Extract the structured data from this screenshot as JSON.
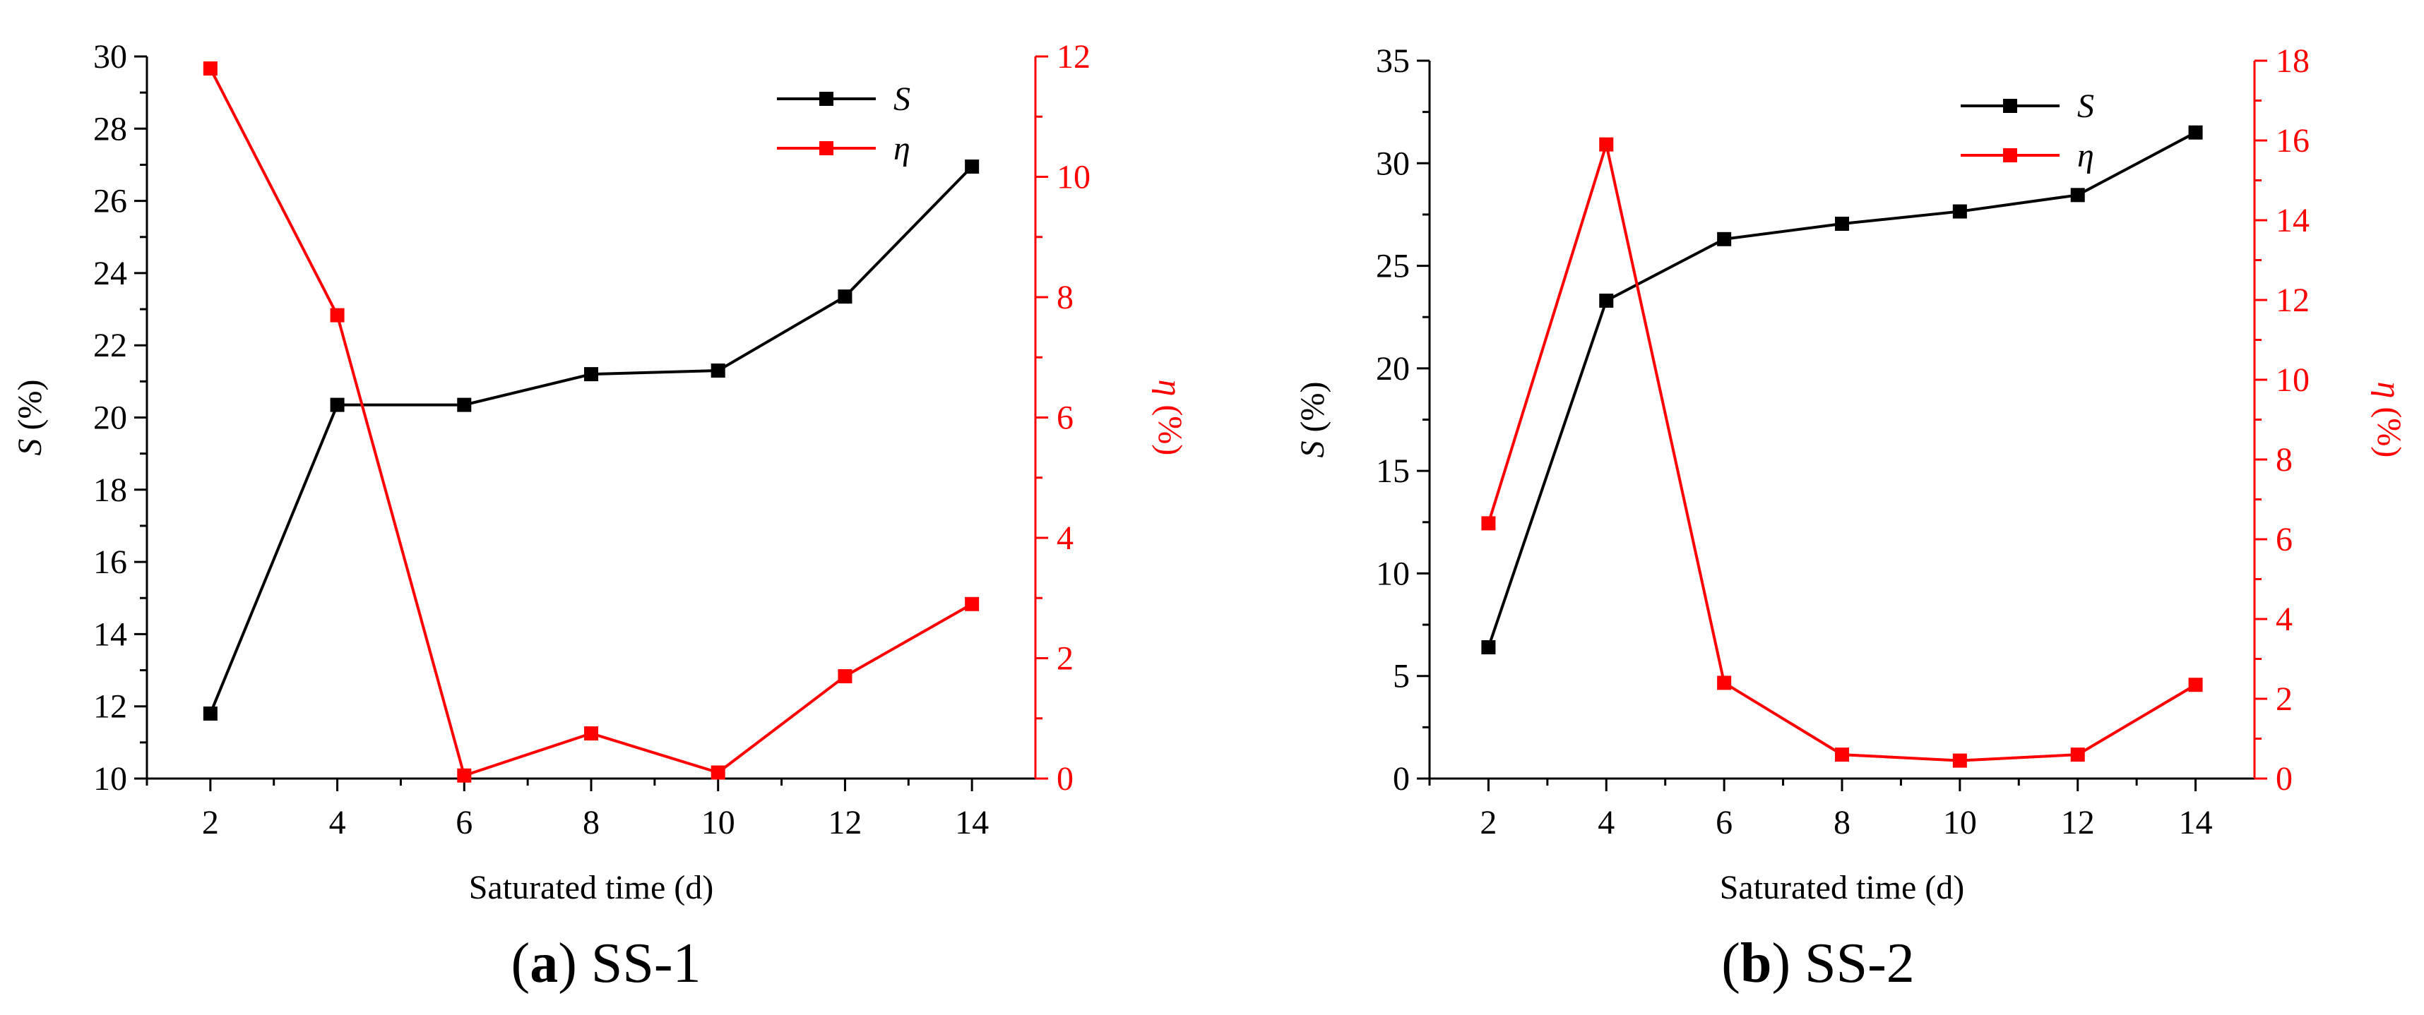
{
  "chart_data": [
    {
      "type": "line",
      "panel": "a",
      "caption_letter": "a",
      "caption_text": "SS-1",
      "xlabel": "Saturated time (d)",
      "ylabel_left_symbol": "S",
      "ylabel_left_unit": " (%)",
      "ylabel_right_symbol": "η",
      "ylabel_right_unit": " (%)",
      "x": [
        2,
        4,
        6,
        8,
        10,
        12,
        14
      ],
      "xlim": [
        1,
        15
      ],
      "xticks": [
        2,
        4,
        6,
        8,
        10,
        12,
        14
      ],
      "ylim_left": [
        10,
        30
      ],
      "yticks_left": [
        10,
        12,
        14,
        16,
        18,
        20,
        22,
        24,
        26,
        28,
        30
      ],
      "ylim_right": [
        0,
        12
      ],
      "yticks_right": [
        0,
        2,
        4,
        6,
        8,
        10,
        12
      ],
      "legend_position": "top-right",
      "series": [
        {
          "name": "S",
          "axis": "left",
          "color": "#000000",
          "values": [
            11.8,
            20.35,
            20.35,
            21.2,
            21.3,
            23.35,
            26.95
          ]
        },
        {
          "name": "η",
          "axis": "right",
          "color": "#ff0000",
          "values": [
            11.8,
            7.7,
            0.05,
            0.75,
            0.1,
            1.7,
            2.9
          ]
        }
      ]
    },
    {
      "type": "line",
      "panel": "b",
      "caption_letter": "b",
      "caption_text": "SS-2",
      "xlabel": "Saturated time (d)",
      "ylabel_left_symbol": "S",
      "ylabel_left_unit": " (%)",
      "ylabel_right_symbol": "η",
      "ylabel_right_unit": " (%)",
      "x": [
        2,
        4,
        6,
        8,
        10,
        12,
        14
      ],
      "xlim": [
        1,
        15
      ],
      "xticks": [
        2,
        4,
        6,
        8,
        10,
        12,
        14
      ],
      "ylim_left": [
        0,
        35
      ],
      "yticks_left": [
        0,
        5,
        10,
        15,
        20,
        25,
        30,
        35
      ],
      "ylim_right": [
        0,
        18
      ],
      "yticks_right": [
        0,
        2,
        4,
        6,
        8,
        10,
        12,
        14,
        16,
        18
      ],
      "legend_position": "top-right",
      "series": [
        {
          "name": "S",
          "axis": "left",
          "color": "#000000",
          "values": [
            6.4,
            23.3,
            26.3,
            27.05,
            27.65,
            28.45,
            31.5
          ]
        },
        {
          "name": "η",
          "axis": "right",
          "color": "#ff0000",
          "values": [
            6.4,
            15.9,
            2.4,
            0.6,
            0.45,
            0.6,
            2.35
          ]
        }
      ]
    }
  ]
}
